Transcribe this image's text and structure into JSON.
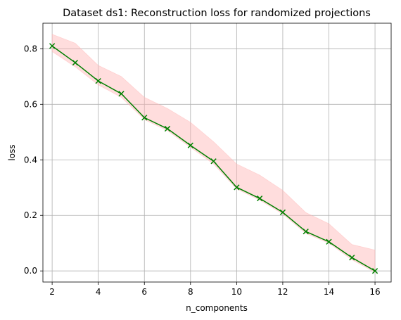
{
  "chart_data": {
    "type": "line",
    "title": "Dataset ds1: Reconstruction loss for randomized projections",
    "xlabel": "n_components",
    "ylabel": "loss",
    "xlim": [
      1.6,
      16.7
    ],
    "ylim": [
      -0.04,
      0.892
    ],
    "xticks": [
      2,
      4,
      6,
      8,
      10,
      12,
      14,
      16
    ],
    "xtick_labels": [
      "2",
      "4",
      "6",
      "8",
      "10",
      "12",
      "14",
      "16"
    ],
    "yticks": [
      0.0,
      0.2,
      0.4,
      0.6,
      0.8
    ],
    "ytick_labels": [
      "0.0",
      "0.2",
      "0.4",
      "0.6",
      "0.8"
    ],
    "grid": true,
    "x": [
      2,
      3,
      4,
      5,
      6,
      7,
      8,
      9,
      10,
      11,
      12,
      13,
      14,
      15,
      16
    ],
    "series": [
      {
        "values": [
          0.81,
          0.75,
          0.684,
          0.638,
          0.552,
          0.512,
          0.452,
          0.395,
          0.301,
          0.261,
          0.211,
          0.142,
          0.105,
          0.048,
          0.0
        ],
        "color": "#008000",
        "marker": "x",
        "band_upper": [
          0.852,
          0.82,
          0.74,
          0.7,
          0.625,
          0.585,
          0.535,
          0.465,
          0.385,
          0.345,
          0.29,
          0.21,
          0.17,
          0.095,
          0.075
        ],
        "band_lower": [
          0.79,
          0.735,
          0.67,
          0.625,
          0.545,
          0.505,
          0.445,
          0.385,
          0.295,
          0.255,
          0.205,
          0.135,
          0.1,
          0.04,
          -0.005
        ],
        "band_color": "#ffb3b3"
      }
    ]
  }
}
